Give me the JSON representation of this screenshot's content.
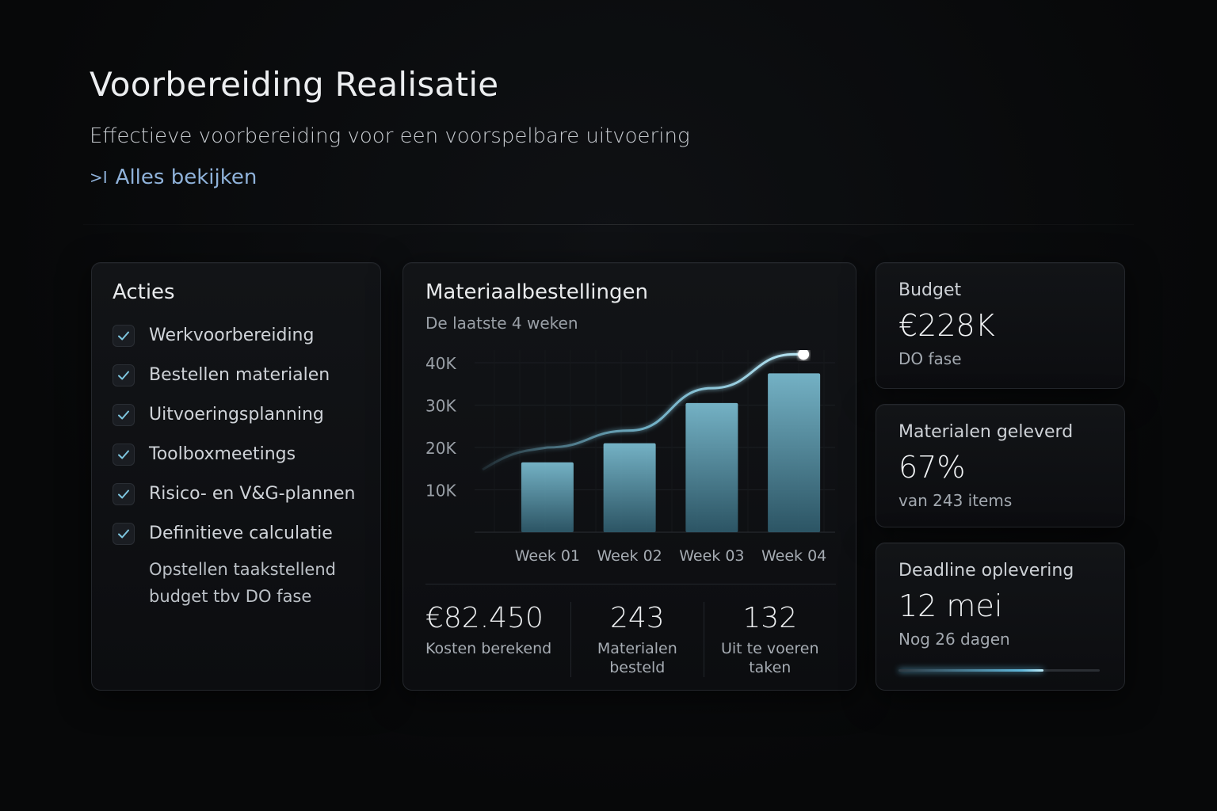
{
  "header": {
    "title": "Voorbereiding Realisatie",
    "subtitle": "Effectieve voorbereiding voor een voorspelbare uitvoering",
    "view_all": "Alles bekijken"
  },
  "actions": {
    "title": "Acties",
    "items": [
      {
        "label": "Werkvoorbereiding",
        "checked": true
      },
      {
        "label": "Bestellen materialen",
        "checked": true
      },
      {
        "label": "Uitvoeringsplanning",
        "checked": true
      },
      {
        "label": "Toolboxmeetings",
        "checked": true
      },
      {
        "label": "Risico- en V&G-plannen",
        "checked": true
      },
      {
        "label": "Definitieve calculatie",
        "checked": true
      }
    ],
    "note": "Opstellen taakstellend budget tbv DO fase"
  },
  "orders": {
    "title": "Materiaalbestellingen",
    "subtitle": "De laatste 4 weken",
    "stats": [
      {
        "value": "€82.450",
        "label": "Kosten berekend"
      },
      {
        "value": "243",
        "label": "Materialen besteld"
      },
      {
        "value": "132",
        "label": "Uit te voeren taken"
      }
    ]
  },
  "chart_data": {
    "type": "bar",
    "categories": [
      "Week 01",
      "Week 02",
      "Week 03",
      "Week 04"
    ],
    "values": [
      16500,
      21000,
      30500,
      37500
    ],
    "trend_line": [
      {
        "x": "Week 01",
        "y": 20000
      },
      {
        "x": "Week 02",
        "y": 24000
      },
      {
        "x": "Week 03",
        "y": 34000
      },
      {
        "x": "Week 04",
        "y": 42000
      }
    ],
    "yticks": [
      "10K",
      "20K",
      "30K",
      "40K"
    ],
    "ylim": [
      0,
      43000
    ],
    "grid": true,
    "colors": {
      "bar": "#4f8fa6",
      "line": "#7ec6df"
    }
  },
  "kpis": {
    "budget": {
      "title": "Budget",
      "value": "€228K",
      "sub": "DO fase"
    },
    "delivered": {
      "title": "Materialen geleverd",
      "value": "67%",
      "sub": "van 243 items"
    },
    "deadline": {
      "title": "Deadline oplevering",
      "value": "12 mei",
      "sub": "Nog 26 dagen",
      "progress": 0.72
    }
  }
}
